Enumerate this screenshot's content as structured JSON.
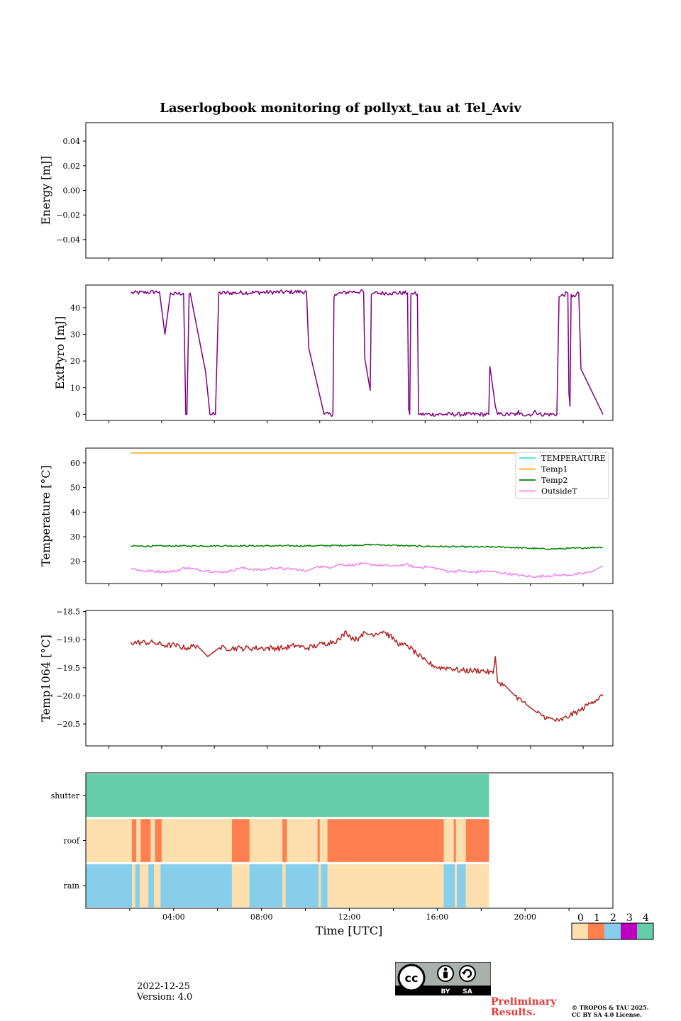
{
  "title": "Laserlogbook monitoring of pollyxt_tau at Tel_Aviv",
  "xlabel": "Time [UTC]",
  "x_ticks": [
    "04:00",
    "08:00",
    "12:00",
    "16:00",
    "20:00"
  ],
  "footer": {
    "date": "2022-12-25",
    "version": "Version: 4.0",
    "preliminary_line1": "Preliminary",
    "preliminary_line2": "Results.",
    "copyright_line1": "© TROPOS & TAU 2025.",
    "copyright_line2": "CC BY SA 4.0 License.",
    "cc_badge_labels": [
      "BY",
      "SA"
    ]
  },
  "colors": {
    "energy": "#1f77b4",
    "extpyro": "#800080",
    "temperature": "#40e0d0",
    "temp1": "#ffa500",
    "temp2": "#008000",
    "outside": "#ee82ee",
    "temp1064": "#b22222",
    "status": [
      "#fddfad",
      "#ff7f50",
      "#87ceeb",
      "#c000c0",
      "#66cdaa"
    ],
    "preliminary": "#e53935"
  },
  "chart_data": [
    {
      "type": "line",
      "ylabel": "Energy [mJ]",
      "ylim": [
        -0.055,
        0.055
      ],
      "yticks": [
        -0.04,
        -0.02,
        0.0,
        0.02,
        0.04
      ],
      "ytick_labels": [
        "−0.04",
        "−0.02",
        "0.00",
        "0.02",
        "0.04"
      ],
      "series": []
    },
    {
      "type": "line",
      "ylabel": "ExtPyro [mJ]",
      "ylim": [
        -2.3,
        48.5
      ],
      "yticks": [
        0,
        10,
        20,
        30,
        40
      ],
      "ytick_labels": [
        "0",
        "10",
        "20",
        "30",
        "40"
      ],
      "series": [
        {
          "color_key": "extpyro",
          "noise": 0.8,
          "x": [
            1.0,
            2.3,
            2.55,
            2.8,
            2.9,
            3.4,
            3.5,
            3.55,
            3.65,
            3.7,
            4.4,
            4.6,
            4.85,
            5.0,
            9.0,
            9.1,
            9.8,
            10.2,
            10.25,
            10.3,
            11.0,
            11.6,
            11.65,
            11.9,
            11.95,
            12.05,
            12.8,
            13.6,
            13.65,
            13.7,
            13.75,
            13.8,
            14.05,
            14.1,
            14.15,
            17.3,
            17.35,
            17.6,
            17.7,
            17.9,
            18.6,
            18.65,
            18.7,
            19.3,
            19.4,
            19.5,
            19.55,
            20.4,
            20.5,
            20.9,
            20.95,
            21.0,
            21.05,
            21.1,
            21.4,
            21.5,
            22.5
          ],
          "y": [
            45.5,
            46.0,
            30.0,
            45.5,
            45.0,
            45.5,
            0.0,
            0.0,
            45.0,
            45.5,
            16.0,
            0.0,
            0.0,
            45.5,
            46.0,
            25.0,
            0.0,
            0.0,
            44.0,
            45.0,
            46.0,
            46.0,
            21.0,
            9.0,
            45.0,
            45.5,
            45.5,
            45.5,
            2.0,
            0.0,
            45.0,
            45.5,
            45.0,
            0.0,
            0.0,
            0.0,
            18.0,
            3.0,
            0.0,
            0.0,
            0.0,
            1.5,
            0.0,
            0.0,
            1.5,
            0.0,
            0.0,
            0.0,
            44.0,
            45.5,
            8.0,
            3.0,
            45.0,
            44.0,
            45.5,
            17.0,
            0.0
          ]
        }
      ]
    },
    {
      "type": "line",
      "ylabel": "Temperature [°C]",
      "ylim": [
        11.0,
        66.0
      ],
      "yticks": [
        20,
        30,
        40,
        50,
        60
      ],
      "ytick_labels": [
        "20",
        "30",
        "40",
        "50",
        "60"
      ],
      "legend": [
        "TEMPERATURE",
        "Temp1",
        "Temp2",
        "OutsideT"
      ],
      "legend_position": "upper right",
      "series": [
        {
          "name": "TEMPERATURE",
          "color_key": "temperature",
          "noise": 0,
          "x": [],
          "y": []
        },
        {
          "name": "Temp1",
          "color_key": "temp1",
          "noise": 0,
          "x": [
            1.0,
            22.5
          ],
          "y": [
            64.0,
            64.0
          ]
        },
        {
          "name": "Temp2",
          "color_key": "temp2",
          "noise": 0.3,
          "x": [
            1.0,
            5.0,
            9.0,
            11.0,
            12.0,
            14.0,
            16.0,
            18.0,
            20.0,
            21.5,
            22.5
          ],
          "y": [
            26.2,
            26.3,
            26.3,
            26.5,
            26.8,
            26.2,
            25.9,
            25.8,
            25.0,
            25.4,
            25.8
          ]
        },
        {
          "name": "OutsideT",
          "color_key": "outside",
          "noise": 0.5,
          "x": [
            1.0,
            1.5,
            2.5,
            3.0,
            3.5,
            4.0,
            4.5,
            5.0,
            5.5,
            6.0,
            6.5,
            7.0,
            7.5,
            8.0,
            8.5,
            9.0,
            9.5,
            10.0,
            10.5,
            11.0,
            11.5,
            12.0,
            12.5,
            13.0,
            13.5,
            14.0,
            14.5,
            15.0,
            15.5,
            16.0,
            16.5,
            17.0,
            17.5,
            18.0,
            18.5,
            19.0,
            19.5,
            20.0,
            20.5,
            21.0,
            21.5,
            22.0,
            22.5
          ],
          "y": [
            17.2,
            16.2,
            15.8,
            16.0,
            17.5,
            16.6,
            16.2,
            15.6,
            16.0,
            17.4,
            16.8,
            16.5,
            17.4,
            17.0,
            16.8,
            16.0,
            18.0,
            17.5,
            18.8,
            18.4,
            19.0,
            18.6,
            18.4,
            18.0,
            18.8,
            17.5,
            17.8,
            17.0,
            15.8,
            16.2,
            15.5,
            16.0,
            15.8,
            15.2,
            14.6,
            14.0,
            13.8,
            14.2,
            14.4,
            14.5,
            15.0,
            15.8,
            18.2
          ]
        }
      ]
    },
    {
      "type": "line",
      "ylabel": "Temp1064 [°C]",
      "ylim": [
        -20.89,
        -18.48
      ],
      "yticks": [
        -20.5,
        -20.0,
        -19.5,
        -19.0,
        -18.5
      ],
      "ytick_labels": [
        "−20.5",
        "−20.0",
        "−19.5",
        "−19.0",
        "−18.5"
      ],
      "series": [
        {
          "color_key": "temp1064",
          "noise": 0.05,
          "x": [
            1.0,
            2.0,
            2.5,
            3.0,
            3.5,
            4.0,
            4.5,
            5.0,
            6.0,
            7.0,
            8.0,
            8.5,
            9.0,
            9.5,
            10.0,
            10.5,
            10.8,
            11.0,
            11.3,
            11.5,
            12.0,
            12.5,
            13.0,
            13.3,
            13.6,
            14.0,
            14.3,
            14.5,
            15.0,
            15.5,
            16.0,
            16.5,
            17.0,
            17.5,
            17.6,
            17.7,
            18.0,
            18.5,
            19.0,
            19.5,
            20.0,
            20.5,
            21.0,
            21.5,
            22.0,
            22.5
          ],
          "y": [
            -19.05,
            -19.05,
            -19.1,
            -19.1,
            -19.15,
            -19.1,
            -19.3,
            -19.15,
            -19.15,
            -19.15,
            -19.15,
            -19.1,
            -19.15,
            -19.1,
            -19.05,
            -19.0,
            -18.85,
            -18.95,
            -19.0,
            -18.9,
            -18.9,
            -18.85,
            -19.0,
            -19.1,
            -19.1,
            -19.25,
            -19.35,
            -19.4,
            -19.5,
            -19.5,
            -19.55,
            -19.55,
            -19.55,
            -19.6,
            -19.3,
            -19.75,
            -19.8,
            -20.0,
            -20.15,
            -20.3,
            -20.4,
            -20.45,
            -20.35,
            -20.25,
            -20.1,
            -20.0
          ]
        }
      ]
    },
    {
      "type": "heatmap",
      "rows": [
        "shutter",
        "roof",
        "rain"
      ],
      "categories": [
        0,
        1,
        2,
        3,
        4
      ],
      "x_range_hours": [
        0,
        24
      ],
      "data_end_hour": 18.35,
      "segments": {
        "shutter": [
          [
            0,
            18.35,
            4
          ]
        ],
        "roof": [
          [
            0,
            2.1,
            0
          ],
          [
            2.1,
            2.3,
            1
          ],
          [
            2.3,
            2.5,
            0
          ],
          [
            2.5,
            2.95,
            1
          ],
          [
            2.95,
            3.15,
            0
          ],
          [
            3.15,
            3.45,
            1
          ],
          [
            3.45,
            6.65,
            0
          ],
          [
            6.65,
            7.45,
            1
          ],
          [
            7.45,
            8.95,
            0
          ],
          [
            8.95,
            9.15,
            1
          ],
          [
            9.15,
            10.55,
            0
          ],
          [
            10.55,
            10.65,
            1
          ],
          [
            10.65,
            11.0,
            0
          ],
          [
            11.0,
            16.3,
            1
          ],
          [
            16.3,
            16.75,
            0
          ],
          [
            16.75,
            16.85,
            1
          ],
          [
            16.85,
            17.3,
            0
          ],
          [
            17.3,
            18.35,
            1
          ]
        ],
        "rain": [
          [
            0,
            2.1,
            2
          ],
          [
            2.1,
            2.25,
            0
          ],
          [
            2.25,
            2.45,
            2
          ],
          [
            2.45,
            2.85,
            0
          ],
          [
            2.85,
            3.1,
            2
          ],
          [
            3.1,
            3.4,
            0
          ],
          [
            3.4,
            6.65,
            2
          ],
          [
            6.65,
            7.45,
            0
          ],
          [
            7.45,
            8.95,
            2
          ],
          [
            8.95,
            9.1,
            0
          ],
          [
            9.1,
            10.6,
            2
          ],
          [
            10.6,
            10.7,
            0
          ],
          [
            10.7,
            11.0,
            2
          ],
          [
            11.0,
            16.3,
            0
          ],
          [
            16.3,
            16.8,
            2
          ],
          [
            16.8,
            16.9,
            0
          ],
          [
            16.9,
            17.3,
            2
          ],
          [
            17.3,
            18.35,
            0
          ]
        ]
      }
    }
  ]
}
